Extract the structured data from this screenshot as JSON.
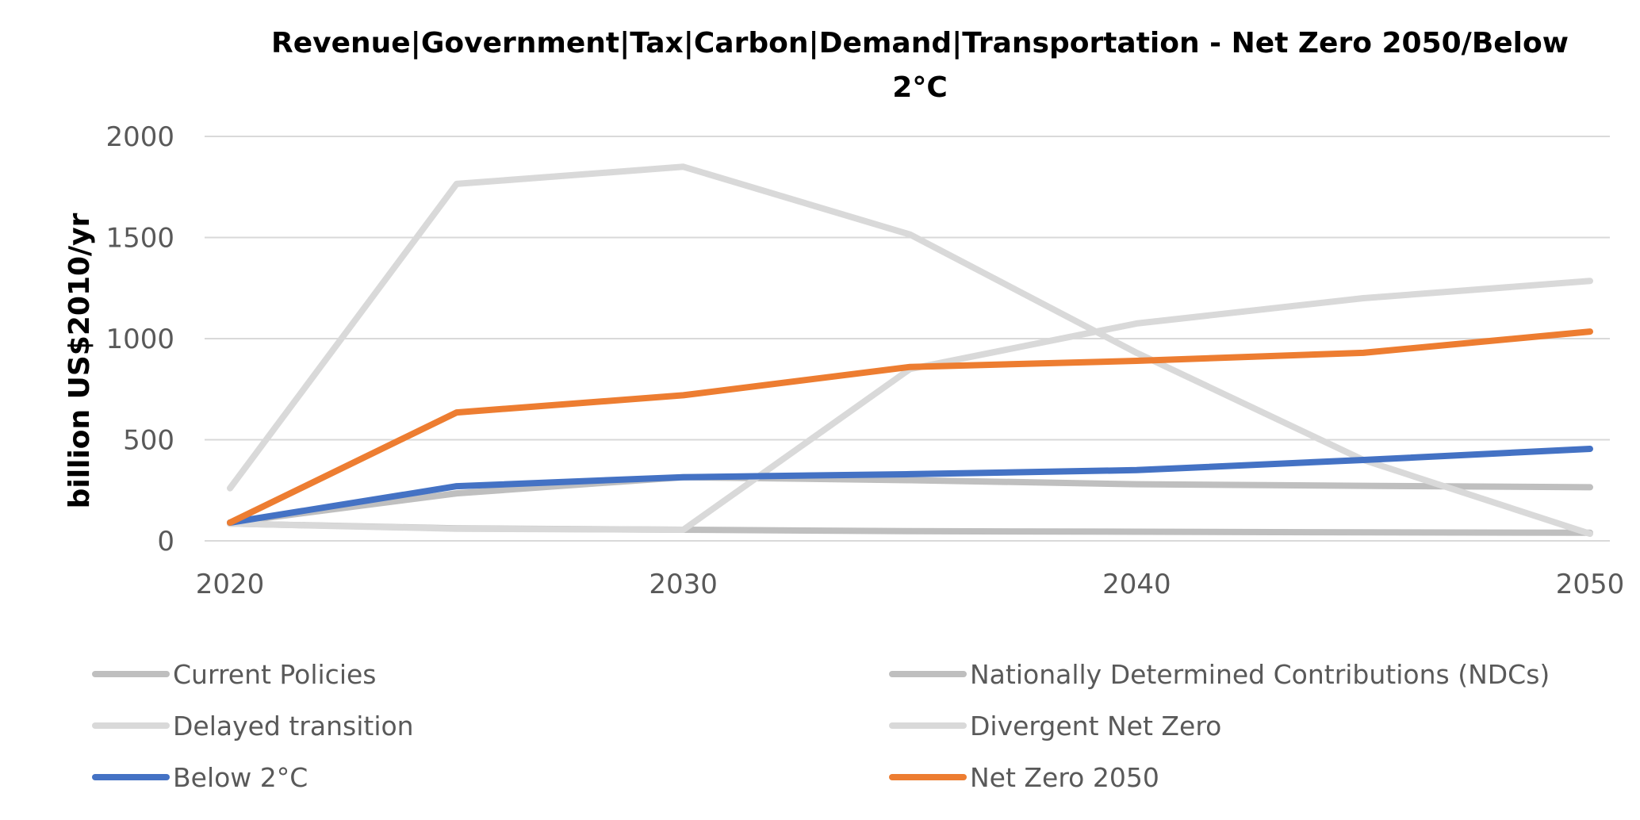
{
  "chart_data": {
    "type": "line",
    "title_line1": "Revenue|Government|Tax|Carbon|Demand|Transportation - Net Zero 2050/Below",
    "title_line2": "2°C",
    "xlabel": "",
    "ylabel": "billion US$2010/yr",
    "x": [
      2020,
      2025,
      2030,
      2035,
      2040,
      2045,
      2050
    ],
    "xticks": [
      "2020",
      "2030",
      "2040",
      "2050"
    ],
    "xlim": [
      2020,
      2050
    ],
    "ylim": [
      0,
      2000
    ],
    "yticks": [
      "0",
      "500",
      "1000",
      "1500",
      "2000"
    ],
    "grid": true,
    "legend_position": "bottom",
    "series": [
      {
        "name": "Current Policies",
        "color": "#bfbfbf",
        "values": [
          85,
          62,
          55,
          48,
          45,
          42,
          40
        ]
      },
      {
        "name": "Nationally Determined Contributions (NDCs)",
        "color": "#bfbfbf",
        "values": [
          90,
          235,
          315,
          300,
          280,
          272,
          265
        ]
      },
      {
        "name": "Delayed transition",
        "color": "#d9d9d9",
        "values": [
          85,
          60,
          55,
          850,
          1075,
          1200,
          1285
        ]
      },
      {
        "name": "Divergent Net Zero",
        "color": "#d9d9d9",
        "values": [
          260,
          1765,
          1850,
          1515,
          930,
          400,
          35
        ]
      },
      {
        "name": "Below 2°C",
        "color": "#4472c4",
        "values": [
          90,
          270,
          315,
          330,
          350,
          400,
          455
        ]
      },
      {
        "name": "Net Zero 2050",
        "color": "#ed7d31",
        "values": [
          90,
          635,
          720,
          860,
          890,
          930,
          1035
        ]
      }
    ]
  }
}
